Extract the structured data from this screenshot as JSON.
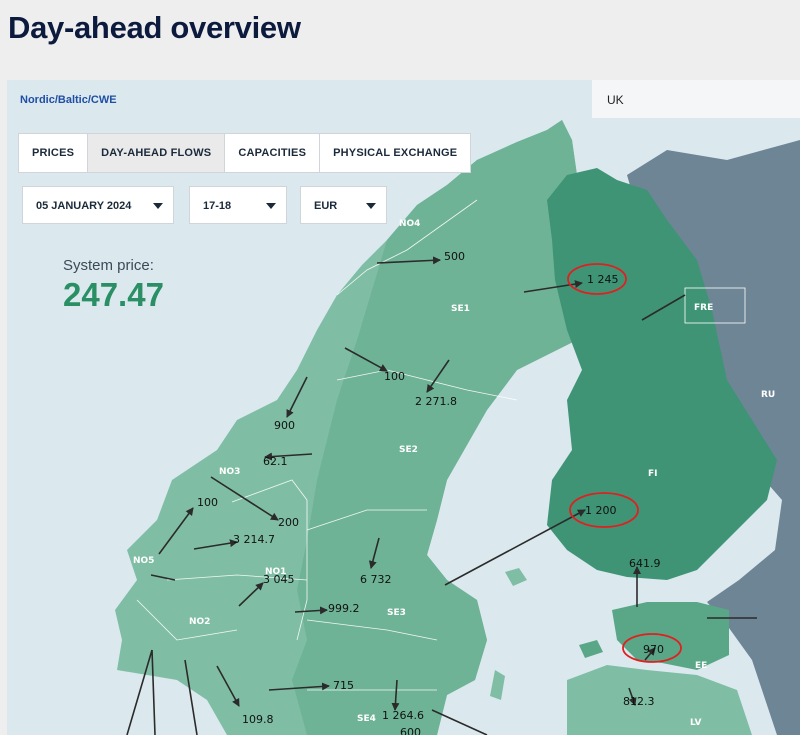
{
  "page_title": "Day-ahead overview",
  "region_link": "Nordic/Baltic/CWE",
  "region_alt": "UK",
  "tabs": [
    {
      "label": "PRICES",
      "active": false
    },
    {
      "label": "DAY-AHEAD FLOWS",
      "active": true
    },
    {
      "label": "CAPACITIES",
      "active": false
    },
    {
      "label": "PHYSICAL EXCHANGE",
      "active": false
    }
  ],
  "filters": {
    "date": "05 JANUARY 2024",
    "hour": "17-18",
    "currency": "EUR"
  },
  "system_price": {
    "label": "System price:",
    "value": "247.47"
  },
  "zones": [
    "NO4",
    "SE1",
    "SE2",
    "NO3",
    "NO5",
    "NO1",
    "NO2",
    "SE3",
    "SE4",
    "FI",
    "FRE",
    "RU",
    "EE",
    "LV"
  ],
  "flows": [
    "500",
    "1 245",
    "100",
    "2 271.8",
    "900",
    "62.1",
    "100",
    "200",
    "3 214.7",
    "3 045",
    "999.2",
    "6 732",
    "1 200",
    "641.9",
    "970",
    "715",
    "1 264.6",
    "109.8",
    "812.3",
    "600"
  ],
  "highlighted_flows": [
    "1 245",
    "1 200",
    "970"
  ],
  "colors": {
    "sea": "#dbe9ef",
    "zone_light": "#7fbea5",
    "finland": "#3f9476",
    "russia": "#6e8595",
    "price_value": "#2a8f64",
    "highlight": "#e02020",
    "title": "#0c1a3d",
    "link": "#1f4ea3"
  }
}
